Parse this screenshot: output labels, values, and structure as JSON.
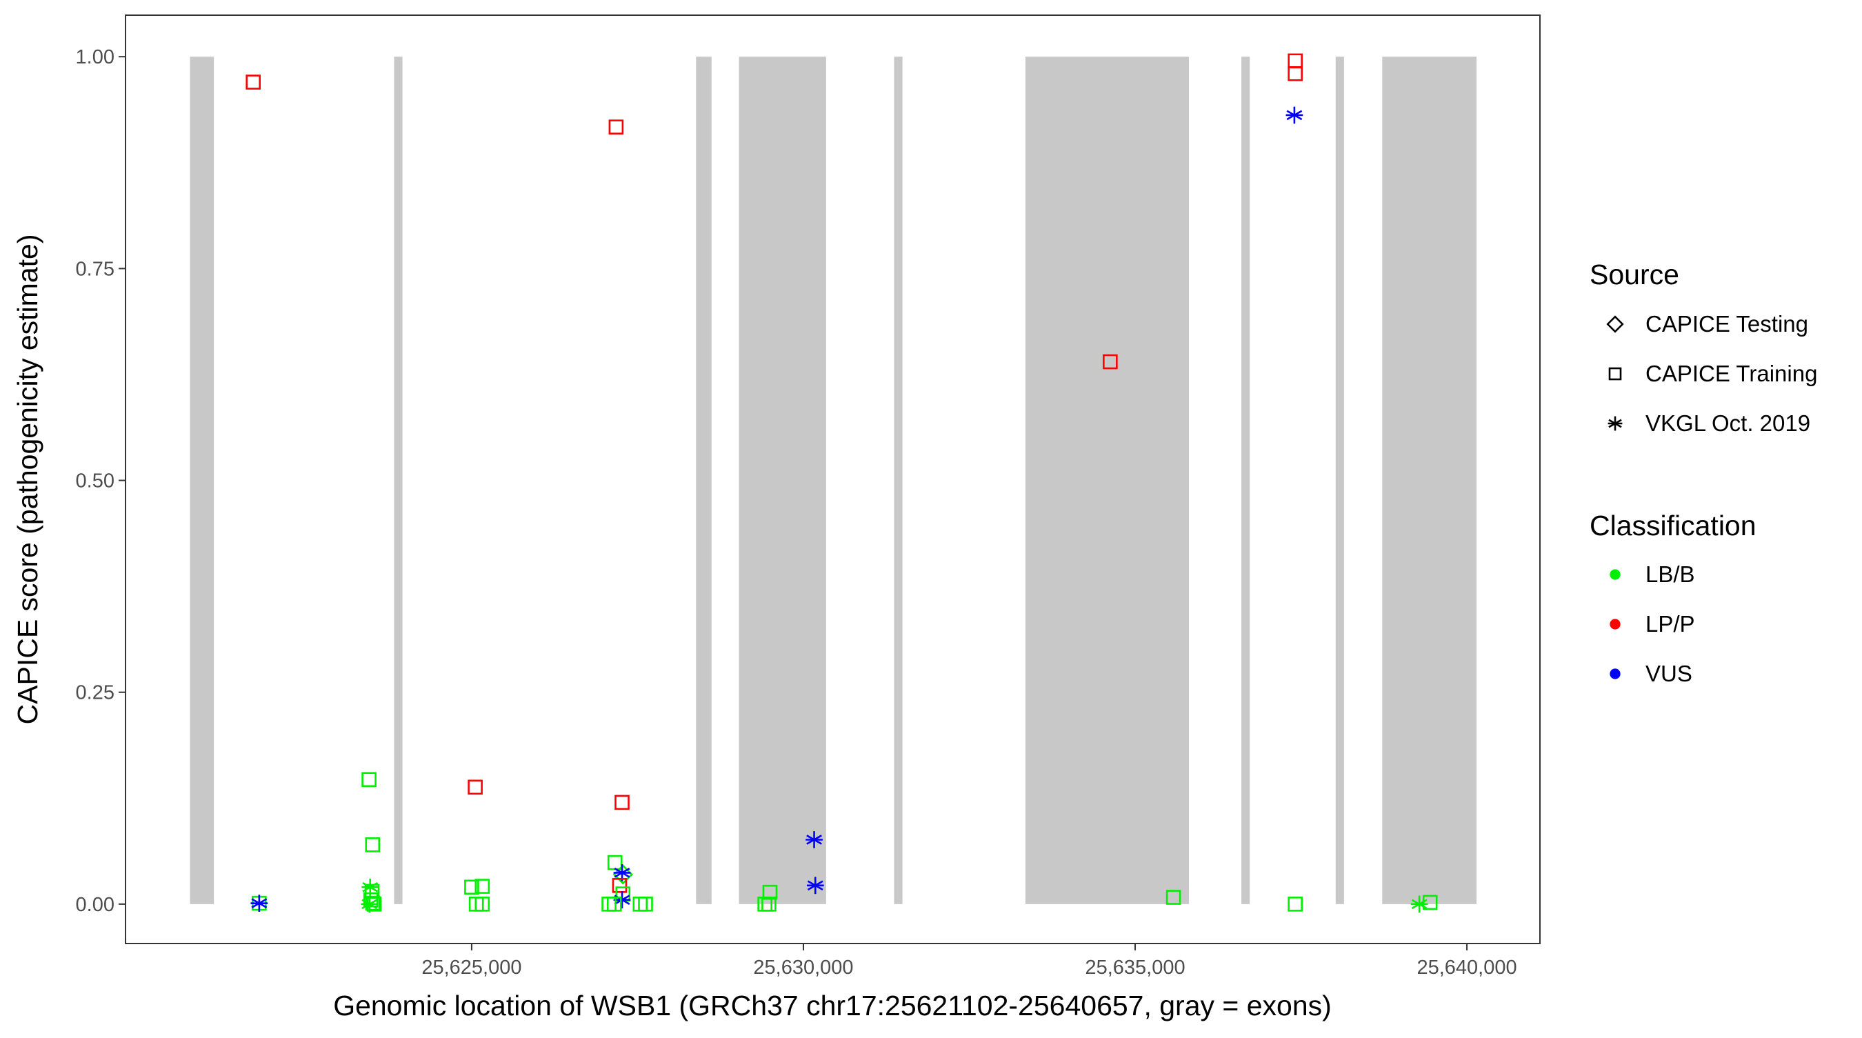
{
  "chart_data": {
    "type": "scatter",
    "title": "",
    "xlabel": "Genomic location of WSB1 (GRCh37 chr17:25621102-25640657, gray = exons)",
    "ylabel": "CAPICE score (pathogenicity estimate)",
    "xlim": [
      25619783,
      25641101
    ],
    "ylim": [
      -0.0465,
      1.049
    ],
    "xticks": [
      25625000,
      25630000,
      25635000,
      25640000
    ],
    "xtick_labels": [
      "25,625,000",
      "25,630,000",
      "25,635,000",
      "25,640,000"
    ],
    "yticks": [
      0,
      0.25,
      0.5,
      0.75,
      1.0
    ],
    "ytick_labels": [
      "0.00",
      "0.25",
      "0.50",
      "0.75",
      "1.00"
    ],
    "grid": false,
    "exons": [
      [
        25620755,
        25621115
      ],
      [
        25623831,
        25623957
      ],
      [
        25628382,
        25628616
      ],
      [
        25629029,
        25630342
      ],
      [
        25631367,
        25631493
      ],
      [
        25633346,
        25635810
      ],
      [
        25636601,
        25636727
      ],
      [
        25638022,
        25638148
      ],
      [
        25638724,
        25640145
      ]
    ],
    "exon_y_range": [
      0,
      1
    ],
    "colors": {
      "LB/B": "#00ee00",
      "LP/P": "#ff0000",
      "VUS": "#0000ff",
      "exon": "#c8c8c8"
    },
    "legend": {
      "placement": "right",
      "source_title": "Source",
      "source_items": [
        {
          "label": "CAPICE Testing",
          "shape": "diamond"
        },
        {
          "label": "CAPICE Training",
          "shape": "square"
        },
        {
          "label": "VKGL Oct. 2019",
          "shape": "star"
        }
      ],
      "class_title": "Classification",
      "class_items": [
        {
          "label": "LB/B"
        },
        {
          "label": "LP/P"
        },
        {
          "label": "VUS"
        }
      ]
    },
    "points": [
      {
        "x": 25621708,
        "y": 0.97,
        "shape": "square",
        "cls": "LP/P"
      },
      {
        "x": 25621798,
        "y": 0.001,
        "shape": "square",
        "cls": "LB/B"
      },
      {
        "x": 25621798,
        "y": 0.001,
        "shape": "star",
        "cls": "VUS"
      },
      {
        "x": 25623453,
        "y": 0.147,
        "shape": "square",
        "cls": "LB/B"
      },
      {
        "x": 25623507,
        "y": 0.07,
        "shape": "square",
        "cls": "LB/B"
      },
      {
        "x": 25623470,
        "y": 0.02,
        "shape": "star",
        "cls": "LB/B"
      },
      {
        "x": 25623500,
        "y": 0.015,
        "shape": "square",
        "cls": "LB/B"
      },
      {
        "x": 25623480,
        "y": 0.005,
        "shape": "square",
        "cls": "LB/B"
      },
      {
        "x": 25623510,
        "y": 0.001,
        "shape": "square",
        "cls": "LB/B"
      },
      {
        "x": 25623460,
        "y": 0.0,
        "shape": "star",
        "cls": "LB/B"
      },
      {
        "x": 25623530,
        "y": 0.0,
        "shape": "square",
        "cls": "LB/B"
      },
      {
        "x": 25625054,
        "y": 0.138,
        "shape": "square",
        "cls": "LP/P"
      },
      {
        "x": 25625000,
        "y": 0.02,
        "shape": "square",
        "cls": "LB/B"
      },
      {
        "x": 25625160,
        "y": 0.021,
        "shape": "square",
        "cls": "LB/B"
      },
      {
        "x": 25625070,
        "y": 0.0,
        "shape": "square",
        "cls": "LB/B"
      },
      {
        "x": 25625160,
        "y": 0.0,
        "shape": "square",
        "cls": "LB/B"
      },
      {
        "x": 25627177,
        "y": 0.917,
        "shape": "square",
        "cls": "LP/P"
      },
      {
        "x": 25627267,
        "y": 0.12,
        "shape": "square",
        "cls": "LP/P"
      },
      {
        "x": 25627160,
        "y": 0.049,
        "shape": "square",
        "cls": "LB/B"
      },
      {
        "x": 25627280,
        "y": 0.035,
        "shape": "diamond",
        "cls": "LB/B"
      },
      {
        "x": 25627267,
        "y": 0.037,
        "shape": "star",
        "cls": "VUS"
      },
      {
        "x": 25627230,
        "y": 0.022,
        "shape": "square",
        "cls": "LP/P"
      },
      {
        "x": 25627280,
        "y": 0.012,
        "shape": "square",
        "cls": "LB/B"
      },
      {
        "x": 25627267,
        "y": 0.005,
        "shape": "star",
        "cls": "VUS"
      },
      {
        "x": 25627070,
        "y": 0.0,
        "shape": "square",
        "cls": "LB/B"
      },
      {
        "x": 25627150,
        "y": 0.0,
        "shape": "square",
        "cls": "LB/B"
      },
      {
        "x": 25627540,
        "y": 0.0,
        "shape": "square",
        "cls": "LB/B"
      },
      {
        "x": 25627620,
        "y": 0.0,
        "shape": "square",
        "cls": "LB/B"
      },
      {
        "x": 25629496,
        "y": 0.014,
        "shape": "square",
        "cls": "LB/B"
      },
      {
        "x": 25629420,
        "y": 0.0,
        "shape": "square",
        "cls": "LB/B"
      },
      {
        "x": 25629480,
        "y": 0.0,
        "shape": "square",
        "cls": "LB/B"
      },
      {
        "x": 25630162,
        "y": 0.076,
        "shape": "star",
        "cls": "VUS"
      },
      {
        "x": 25630180,
        "y": 0.022,
        "shape": "star",
        "cls": "VUS"
      },
      {
        "x": 25634624,
        "y": 0.64,
        "shape": "square",
        "cls": "LP/P"
      },
      {
        "x": 25635578,
        "y": 0.008,
        "shape": "square",
        "cls": "LB/B"
      },
      {
        "x": 25637413,
        "y": 0.995,
        "shape": "square",
        "cls": "LP/P"
      },
      {
        "x": 25637413,
        "y": 0.98,
        "shape": "square",
        "cls": "LP/P"
      },
      {
        "x": 25637400,
        "y": 0.931,
        "shape": "star",
        "cls": "VUS"
      },
      {
        "x": 25637413,
        "y": 0.0,
        "shape": "square",
        "cls": "LB/B"
      },
      {
        "x": 25639283,
        "y": 0.0,
        "shape": "star",
        "cls": "LB/B"
      },
      {
        "x": 25639445,
        "y": 0.002,
        "shape": "square",
        "cls": "LB/B"
      }
    ]
  }
}
